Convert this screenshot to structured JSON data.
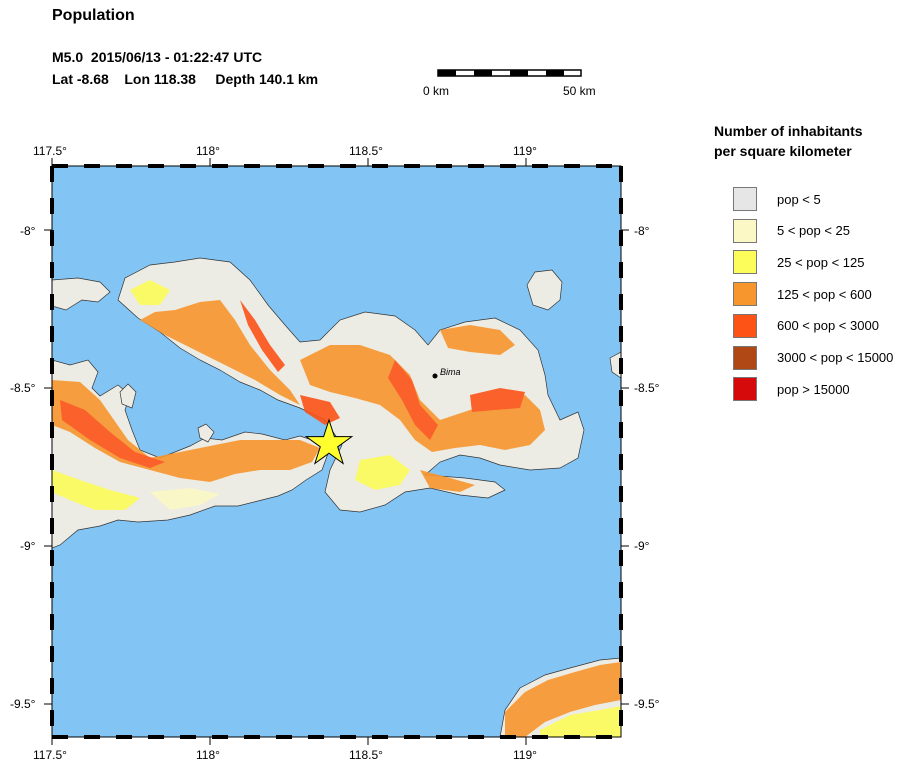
{
  "header": {
    "title": "Population",
    "event_line": "M5.0  2015/06/13 - 01:22:47 UTC",
    "location_line": "Lat -8.68    Lon 118.38     Depth 140.1 km"
  },
  "scale_bar": {
    "start_label": "0 km",
    "end_label": "50 km"
  },
  "map": {
    "longitude_ticks": [
      "117.5°",
      "118°",
      "118.5°",
      "119°"
    ],
    "latitude_ticks": [
      "-8°",
      "-8.5°",
      "-9°",
      "-9.5°"
    ],
    "city": "Bima",
    "ocean_color": "#82c5f5",
    "epicenter_color": "#ffff2e"
  },
  "legend": {
    "title_line1": "Number of inhabitants",
    "title_line2": "per square kilometer",
    "items": [
      {
        "label": "pop < 5",
        "color": "#e6e6e6"
      },
      {
        "label": "5 < pop < 25",
        "color": "#fbf8c5"
      },
      {
        "label": "25 < pop < 125",
        "color": "#fcfc5a"
      },
      {
        "label": "125 < pop < 600",
        "color": "#f8962e"
      },
      {
        "label": "600 < pop < 3000",
        "color": "#fd5317"
      },
      {
        "label": "3000 < pop < 15000",
        "color": "#b04815"
      },
      {
        "label": "pop > 15000",
        "color": "#d60a0a"
      }
    ]
  }
}
